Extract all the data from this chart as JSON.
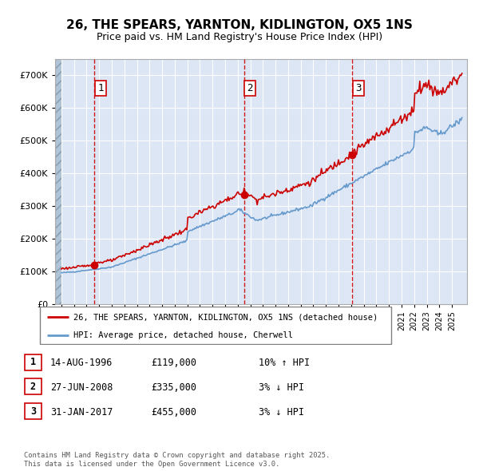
{
  "title": "26, THE SPEARS, YARNTON, KIDLINGTON, OX5 1NS",
  "subtitle": "Price paid vs. HM Land Registry's House Price Index (HPI)",
  "ylim": [
    0,
    750000
  ],
  "ytick_labels": [
    "£0",
    "£100K",
    "£200K",
    "£300K",
    "£400K",
    "£500K",
    "£600K",
    "£700K"
  ],
  "plot_bg_color": "#dce6f5",
  "sale_prices": [
    119000,
    335000,
    455000
  ],
  "sale_labels": [
    "1",
    "2",
    "3"
  ],
  "sale_date_labels": [
    "14-AUG-1996",
    "27-JUN-2008",
    "31-JAN-2017"
  ],
  "legend_red_label": "26, THE SPEARS, YARNTON, KIDLINGTON, OX5 1NS (detached house)",
  "legend_blue_label": "HPI: Average price, detached house, Cherwell",
  "footer_line1": "Contains HM Land Registry data © Crown copyright and database right 2025.",
  "footer_line2": "This data is licensed under the Open Government Licence v3.0.",
  "red_color": "#cc0000",
  "blue_color": "#6699cc",
  "table_data": [
    [
      "1",
      "14-AUG-1996",
      "£119,000",
      "10% ↑ HPI"
    ],
    [
      "2",
      "27-JUN-2008",
      "£335,000",
      "3% ↓ HPI"
    ],
    [
      "3",
      "31-JAN-2017",
      "£455,000",
      "3% ↓ HPI"
    ]
  ]
}
